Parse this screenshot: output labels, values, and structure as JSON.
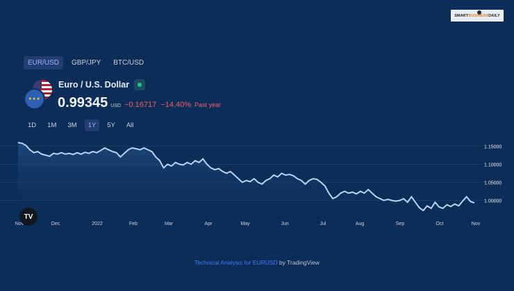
{
  "brand": {
    "logo_text_left": "SMART",
    "logo_text_mid": "BUSINESS",
    "logo_text_right": "DAILY"
  },
  "tabs": [
    {
      "label": "EUR/USD",
      "active": true
    },
    {
      "label": "GBP/JPY",
      "active": false
    },
    {
      "label": "BTC/USD",
      "active": false
    }
  ],
  "symbol": {
    "name": "Euro / U.S. Dollar",
    "price": "0.99345",
    "currency": "USD",
    "change": "−0.16717",
    "change_pct": "−14.40%",
    "period": "Past year",
    "status_color": "#22c58b"
  },
  "ranges": [
    {
      "label": "1D",
      "active": false
    },
    {
      "label": "1M",
      "active": false
    },
    {
      "label": "3M",
      "active": false
    },
    {
      "label": "1Y",
      "active": true
    },
    {
      "label": "5Y",
      "active": false
    },
    {
      "label": "All",
      "active": false
    }
  ],
  "chart_data": {
    "type": "area",
    "x_labels": [
      "Nov",
      "Dec",
      "2022",
      "Feb",
      "Mar",
      "Apr",
      "May",
      "Jun",
      "Jul",
      "Aug",
      "Sep",
      "Oct",
      "Nov"
    ],
    "y_ticks": [
      "1.15000",
      "1.10000",
      "1.05000",
      "1.00000"
    ],
    "ylim": [
      0.955,
      1.17
    ],
    "line_color": "#b9d4f5",
    "grid": true,
    "series": [
      {
        "values": [
          1.16,
          1.158,
          1.152,
          1.14,
          1.132,
          1.135,
          1.128,
          1.125,
          1.122,
          1.13,
          1.128,
          1.132,
          1.128,
          1.13,
          1.127,
          1.132,
          1.128,
          1.133,
          1.13,
          1.135,
          1.132,
          1.138,
          1.145,
          1.14,
          1.135,
          1.132,
          1.12,
          1.13,
          1.14,
          1.145,
          1.143,
          1.14,
          1.145,
          1.14,
          1.135,
          1.12,
          1.11,
          1.09,
          1.1,
          1.095,
          1.105,
          1.1,
          1.098,
          1.105,
          1.1,
          1.11,
          1.105,
          1.115,
          1.1,
          1.09,
          1.085,
          1.088,
          1.08,
          1.075,
          1.08,
          1.07,
          1.06,
          1.05,
          1.055,
          1.052,
          1.06,
          1.05,
          1.045,
          1.055,
          1.06,
          1.07,
          1.065,
          1.075,
          1.07,
          1.072,
          1.068,
          1.06,
          1.055,
          1.045,
          1.055,
          1.06,
          1.058,
          1.05,
          1.04,
          1.02,
          1.005,
          1.01,
          1.02,
          1.025,
          1.02,
          1.023,
          1.018,
          1.025,
          1.02,
          1.03,
          1.02,
          1.01,
          1.005,
          1.0,
          1.003,
          1.0,
          0.998,
          1.0,
          1.005,
          0.995,
          1.01,
          0.995,
          0.98,
          0.972,
          0.985,
          0.978,
          0.995,
          0.982,
          0.978,
          0.988,
          0.983,
          0.99,
          0.985,
          0.998,
          1.01,
          0.997,
          0.993
        ]
      }
    ]
  },
  "footer": {
    "link_text": "Technical Analysis for EURUSD",
    "suffix": " by TradingView"
  },
  "tv_logo": "TV"
}
